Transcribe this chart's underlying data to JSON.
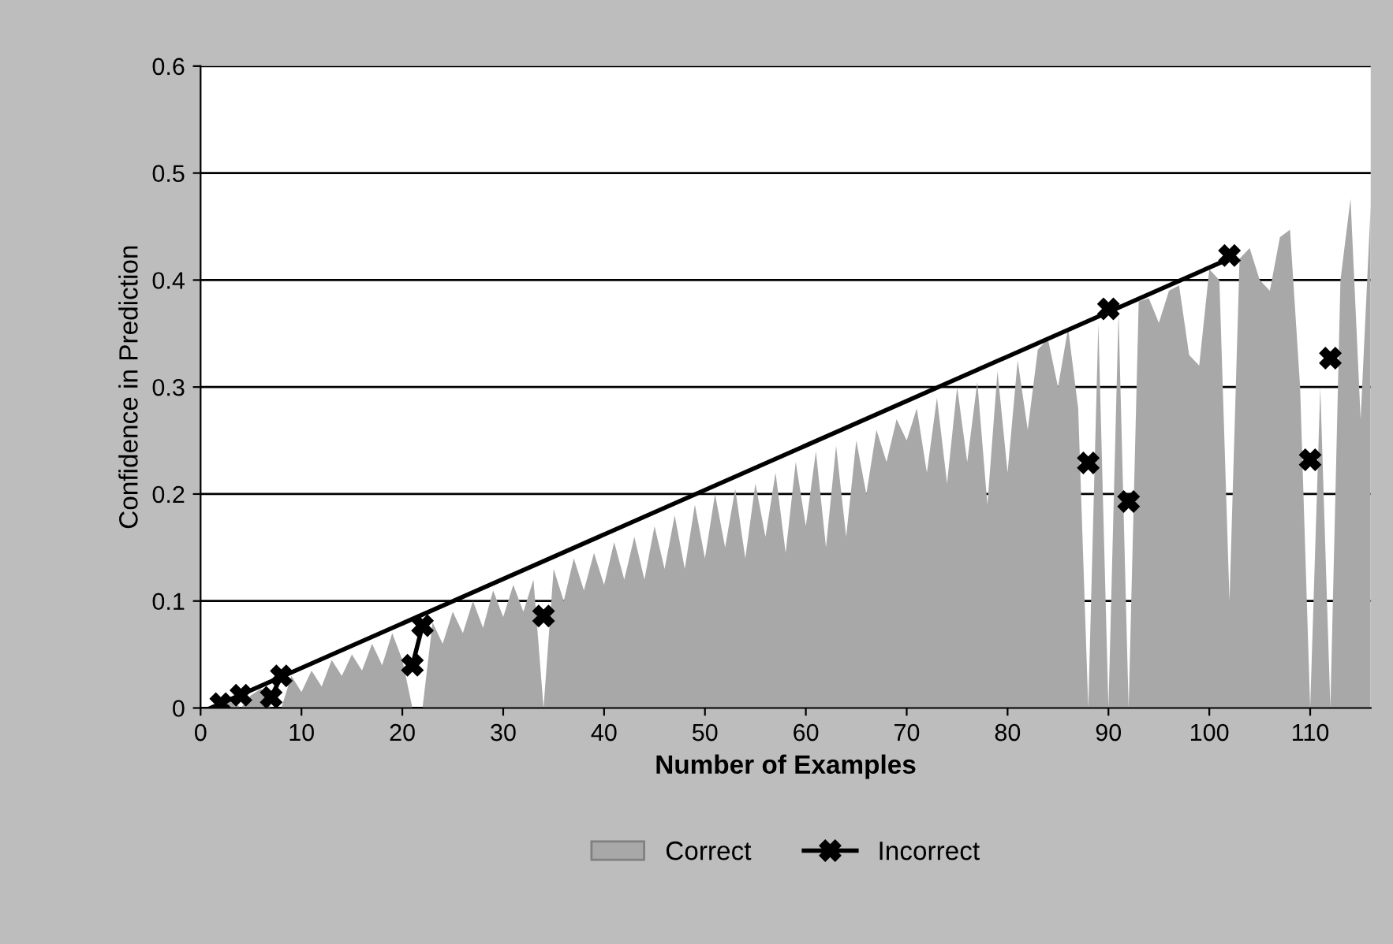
{
  "chart_data": {
    "type": "area",
    "xlabel": "Number of Examples",
    "ylabel": "Confidence in Prediction",
    "xlim": [
      0,
      116
    ],
    "xticks": [
      0,
      10,
      20,
      30,
      40,
      50,
      60,
      70,
      80,
      90,
      100,
      110
    ],
    "ylim": [
      0,
      0.6
    ],
    "yticks": [
      0,
      0.1,
      0.2,
      0.3,
      0.4,
      0.5,
      0.6
    ],
    "grid": "y",
    "legend": "bottom",
    "series": [
      {
        "name": "Correct",
        "color": "#a8a8a8",
        "x": [
          1,
          2,
          3,
          4,
          5,
          6,
          7,
          8,
          9,
          10,
          11,
          12,
          13,
          14,
          15,
          16,
          17,
          18,
          19,
          20,
          21,
          22,
          23,
          24,
          25,
          26,
          27,
          28,
          29,
          30,
          31,
          32,
          33,
          34,
          35,
          36,
          37,
          38,
          39,
          40,
          41,
          42,
          43,
          44,
          45,
          46,
          47,
          48,
          49,
          50,
          51,
          52,
          53,
          54,
          55,
          56,
          57,
          58,
          59,
          60,
          61,
          62,
          63,
          64,
          65,
          66,
          67,
          68,
          69,
          70,
          71,
          72,
          73,
          74,
          75,
          76,
          77,
          78,
          79,
          80,
          81,
          82,
          83,
          84,
          85,
          86,
          87,
          88,
          89,
          90,
          91,
          92,
          93,
          94,
          95,
          96,
          97,
          98,
          99,
          100,
          101,
          102,
          103,
          104,
          105,
          106,
          107,
          108,
          109,
          110,
          111,
          112,
          113,
          114,
          115,
          116
        ],
        "values": [
          0.003,
          0,
          0.008,
          0,
          0.012,
          0.018,
          0,
          0,
          0.03,
          0.015,
          0.035,
          0.02,
          0.045,
          0.03,
          0.05,
          0.035,
          0.06,
          0.04,
          0.07,
          0.045,
          0,
          0,
          0.08,
          0.06,
          0.09,
          0.07,
          0.1,
          0.075,
          0.11,
          0.085,
          0.115,
          0.09,
          0.12,
          0,
          0.13,
          0.1,
          0.14,
          0.11,
          0.145,
          0.115,
          0.155,
          0.12,
          0.16,
          0.12,
          0.17,
          0.13,
          0.18,
          0.13,
          0.19,
          0.14,
          0.2,
          0.15,
          0.205,
          0.14,
          0.21,
          0.16,
          0.22,
          0.145,
          0.23,
          0.17,
          0.24,
          0.15,
          0.245,
          0.16,
          0.25,
          0.2,
          0.26,
          0.23,
          0.27,
          0.25,
          0.28,
          0.22,
          0.29,
          0.21,
          0.3,
          0.23,
          0.305,
          0.19,
          0.315,
          0.22,
          0.325,
          0.26,
          0.335,
          0.345,
          0.3,
          0.355,
          0.28,
          0,
          0.36,
          0,
          0.37,
          0,
          0.38,
          0.383,
          0.36,
          0.39,
          0.395,
          0.33,
          0.32,
          0.41,
          0.4,
          0.1,
          0.42,
          0.43,
          0.4,
          0.39,
          0.44,
          0.447,
          0.3,
          0,
          0.3,
          0,
          0.4,
          0.476,
          0.27,
          0.47
        ]
      },
      {
        "name": "Incorrect",
        "type": "line",
        "color": "#000000",
        "marker": "cross",
        "x": [
          2,
          3,
          4,
          5,
          7,
          8,
          9,
          21,
          22,
          23,
          34,
          35,
          88,
          89,
          90,
          91,
          92,
          93,
          102,
          103,
          110,
          111,
          112
        ],
        "values": [
          0.004,
          null,
          0.012,
          null,
          0.01,
          0.03,
          null,
          0.04,
          0.077,
          null,
          0.086,
          null,
          0.229,
          null,
          0.373,
          null,
          0.193,
          null,
          0.423,
          null,
          0.232,
          null,
          0.327
        ]
      },
      {
        "type": "line",
        "color": "#000000",
        "x": [
          1,
          102
        ],
        "values": [
          0.0,
          0.42
        ]
      }
    ]
  }
}
